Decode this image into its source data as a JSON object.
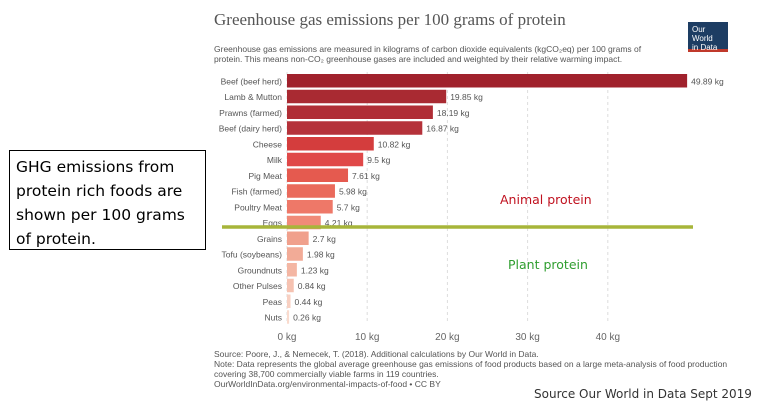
{
  "header": {
    "title": "Greenhouse gas emissions per 100 grams of protein",
    "subtitle": "Greenhouse gas emissions are measured in kilograms of carbon dioxide equivalents (kgCO₂eq) per 100 grams of protein. This means non-CO₂ greenhouse gases are included and weighted by their relative warming impact.",
    "logo_line1": "Our World",
    "logo_line2": "in Data"
  },
  "note_box": {
    "text": "GHG emissions from protein rich foods are shown per 100 grams of protein."
  },
  "annotations": {
    "animal": "Animal protein",
    "plant": "Plant protein"
  },
  "source_lines": [
    "Source: Poore, J., & Nemecek, T. (2018). Additional calculations by Our World in Data.",
    "Note: Data represents the global average greenhouse gas emissions of food products based on a large meta-analysis of food production",
    "covering 38,700 commercially viable farms in 119 countries.",
    "OurWorldInData.org/environmental-impacts-of-food • CC BY"
  ],
  "footer": "Source Our World in Data Sept 2019",
  "chart_data": {
    "type": "bar",
    "orientation": "horizontal",
    "categories": [
      "Beef (beef herd)",
      "Lamb & Mutton",
      "Prawns (farmed)",
      "Beef (dairy herd)",
      "Cheese",
      "Milk",
      "Pig Meat",
      "Fish (farmed)",
      "Poultry Meat",
      "Eggs",
      "Grains",
      "Tofu (soybeans)",
      "Groundnuts",
      "Other Pulses",
      "Peas",
      "Nuts"
    ],
    "values": [
      49.89,
      19.85,
      18.19,
      16.87,
      10.82,
      9.5,
      7.61,
      5.98,
      5.7,
      4.21,
      2.7,
      1.98,
      1.23,
      0.84,
      0.44,
      0.26
    ],
    "value_labels": [
      "49.89 kg",
      "19.85 kg",
      "18.19 kg",
      "16.87 kg",
      "10.82 kg",
      "9.5 kg",
      "7.61 kg",
      "5.98 kg",
      "5.7 kg",
      "4.21 kg",
      "2.7 kg",
      "1.98 kg",
      "1.23 kg",
      "0.84 kg",
      "0.44 kg",
      "0.26 kg"
    ],
    "xticks": [
      0,
      10,
      20,
      30,
      40
    ],
    "xtick_labels": [
      "0 kg",
      "10 kg",
      "20 kg",
      "30 kg",
      "40 kg"
    ],
    "xlim": [
      0,
      50
    ],
    "grid": true,
    "colors": [
      "#a0212c",
      "#a92a32",
      "#b02d35",
      "#b5323a",
      "#d43d3d",
      "#e04848",
      "#e55a4f",
      "#ea6a5c",
      "#ee7868",
      "#f08a78",
      "#f0a08c",
      "#f2ab97",
      "#f4b6a3",
      "#f6c2b1",
      "#f8d0c2",
      "#fadbce"
    ],
    "divider_color": "#a7b53a"
  }
}
